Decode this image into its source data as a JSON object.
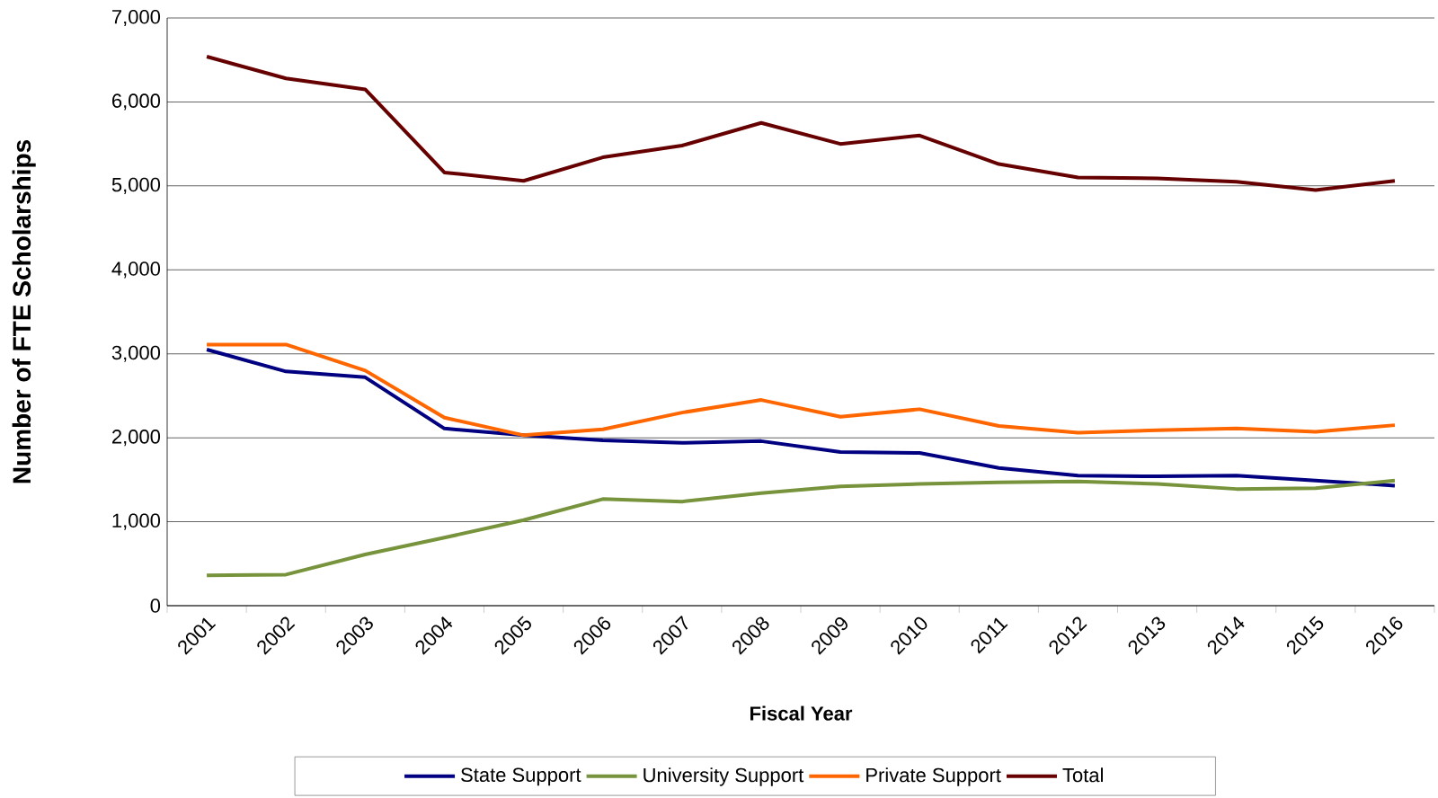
{
  "chart_data": {
    "type": "line",
    "xlabel": "Fiscal Year",
    "ylabel": "Number of FTE Scholarships",
    "categories": [
      "2001",
      "2002",
      "2003",
      "2004",
      "2005",
      "2006",
      "2007",
      "2008",
      "2009",
      "2010",
      "2011",
      "2012",
      "2013",
      "2014",
      "2015",
      "2016"
    ],
    "series": [
      {
        "name": "State Support",
        "color": "#000080",
        "values": [
          3050,
          2790,
          2720,
          2110,
          2030,
          1970,
          1940,
          1960,
          1830,
          1820,
          1640,
          1550,
          1540,
          1550,
          1490,
          1430
        ]
      },
      {
        "name": "University Support",
        "color": "#77933c",
        "values": [
          360,
          370,
          610,
          810,
          1020,
          1270,
          1240,
          1340,
          1420,
          1450,
          1470,
          1480,
          1450,
          1390,
          1400,
          1490
        ]
      },
      {
        "name": "Private Support",
        "color": "#ff6600",
        "values": [
          3110,
          3110,
          2800,
          2240,
          2030,
          2100,
          2300,
          2450,
          2250,
          2340,
          2140,
          2060,
          2090,
          2110,
          2070,
          2150
        ]
      },
      {
        "name": "Total",
        "color": "#660000",
        "values": [
          6540,
          6280,
          6150,
          5160,
          5060,
          5340,
          5480,
          5750,
          5500,
          5600,
          5260,
          5100,
          5090,
          5050,
          4950,
          5060
        ]
      }
    ],
    "ylim": [
      0,
      7000
    ],
    "yticks": [
      0,
      {
        "value": 1000,
        "label": "1,000"
      },
      {
        "value": 2000,
        "label": "2,000"
      },
      {
        "value": 3000,
        "label": "3,000"
      },
      {
        "value": 4000,
        "label": "4,000"
      },
      {
        "value": 5000,
        "label": "5,000"
      },
      {
        "value": 6000,
        "label": "6,000"
      },
      {
        "value": 7000,
        "label": "7,000"
      }
    ],
    "grid": "y",
    "legend": "bottom"
  }
}
